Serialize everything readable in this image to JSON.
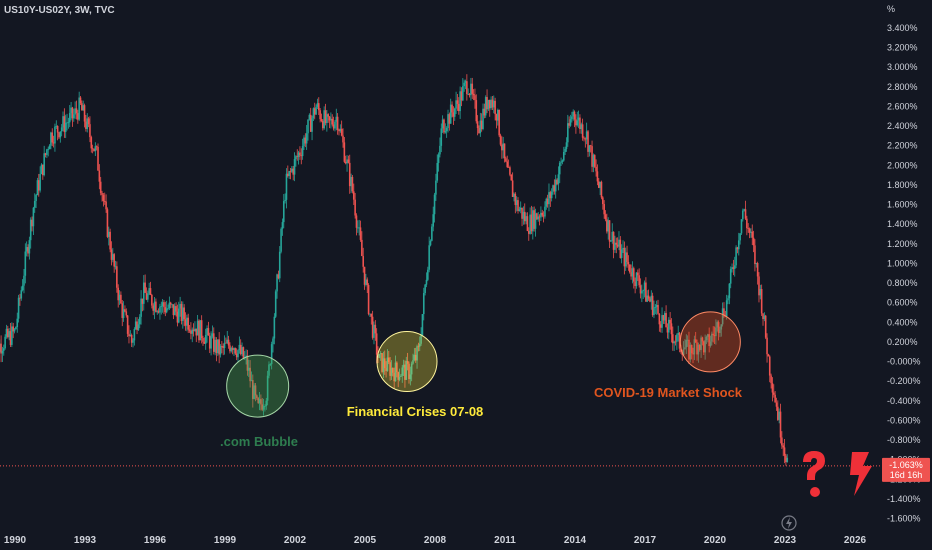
{
  "chart_data": {
    "type": "candlestick",
    "title": "US10Y-US02Y, 3W, TVC",
    "y_unit": "%",
    "ylim": [
      -1.7,
      3.5
    ],
    "y_ticks": [
      "3.400%",
      "3.200%",
      "3.000%",
      "2.800%",
      "2.600%",
      "2.400%",
      "2.200%",
      "2.000%",
      "1.800%",
      "1.600%",
      "1.400%",
      "1.200%",
      "1.000%",
      "0.800%",
      "0.600%",
      "0.400%",
      "0.200%",
      "-0.000%",
      "-0.200%",
      "-0.400%",
      "-0.600%",
      "-0.800%",
      "-1.000%",
      "-1.200%",
      "-1.400%",
      "-1.600%"
    ],
    "y_tick_values": [
      3.4,
      3.2,
      3.0,
      2.8,
      2.6,
      2.4,
      2.2,
      2.0,
      1.8,
      1.6,
      1.4,
      1.2,
      1.0,
      0.8,
      0.6,
      0.4,
      0.2,
      0.0,
      -0.2,
      -0.4,
      -0.6,
      -0.8,
      -1.0,
      -1.2,
      -1.4,
      -1.6
    ],
    "x_ticks": [
      "1990",
      "1993",
      "1996",
      "1999",
      "2002",
      "2005",
      "2008",
      "2011",
      "2014",
      "2017",
      "2020",
      "2023",
      "2026"
    ],
    "x_tick_values": [
      1990,
      1993,
      1996,
      1999,
      2002,
      2005,
      2008,
      2011,
      2014,
      2017,
      2020,
      2023,
      2026
    ],
    "xlim": [
      1989.0,
      2027.6
    ],
    "series_anchors": {
      "x": [
        1989.0,
        1990.0,
        1990.8,
        1991.5,
        1992.5,
        1992.8,
        1993.5,
        1994.0,
        1994.5,
        1995.0,
        1995.5,
        1996.0,
        1996.5,
        1997.0,
        1998.0,
        1998.8,
        1999.3,
        1999.9,
        2000.4,
        2000.8,
        2001.2,
        2001.6,
        2002.3,
        2002.9,
        2003.4,
        2003.8,
        2004.5,
        2005.2,
        2005.6,
        2006.3,
        2006.9,
        2007.3,
        2007.8,
        2008.3,
        2008.9,
        2009.4,
        2009.9,
        2010.3,
        2010.6,
        2011.0,
        2011.5,
        2012.0,
        2012.8,
        2013.4,
        2013.9,
        2014.5,
        2015.0,
        2015.5,
        2016.0,
        2016.5,
        2017.0,
        2017.8,
        2018.4,
        2018.9,
        2019.3,
        2019.6,
        2020.0,
        2020.5,
        2021.2,
        2021.6,
        2022.0,
        2022.3,
        2022.6,
        2022.9,
        2023.15
      ],
      "y": [
        0.1,
        0.3,
        1.6,
        2.3,
        2.5,
        2.6,
        2.1,
        1.3,
        0.6,
        0.2,
        0.7,
        0.6,
        0.55,
        0.5,
        0.3,
        0.1,
        0.2,
        0.0,
        -0.5,
        -0.3,
        0.7,
        1.8,
        2.2,
        2.6,
        2.4,
        2.5,
        1.7,
        0.5,
        0.0,
        -0.1,
        -0.1,
        0.1,
        1.3,
        2.4,
        2.6,
        2.85,
        2.4,
        2.7,
        2.6,
        2.0,
        1.6,
        1.4,
        1.6,
        2.0,
        2.55,
        2.3,
        1.8,
        1.3,
        1.1,
        0.9,
        0.7,
        0.4,
        0.2,
        0.1,
        0.2,
        0.15,
        0.3,
        0.6,
        1.55,
        1.2,
        0.6,
        0.0,
        -0.4,
        -0.8,
        -1.06
      ]
    },
    "annotations": [
      {
        "text": ".com Bubble",
        "x": 2000.4,
        "y": -0.25,
        "color": "#2e7d4f"
      },
      {
        "text": "Financial Crises 07-08",
        "x": 2006.8,
        "y": 0.0,
        "color": "#ffeb3b"
      },
      {
        "text": "COVID-19 Market Shock",
        "x": 2019.8,
        "y": 0.2,
        "color": "#e0551f"
      }
    ],
    "last_value_label": "-1.063%",
    "countdown_label": "16d 16h",
    "last_value": -1.063,
    "up_color": "#26a69a",
    "down_color": "#ef5350",
    "grid": false
  }
}
